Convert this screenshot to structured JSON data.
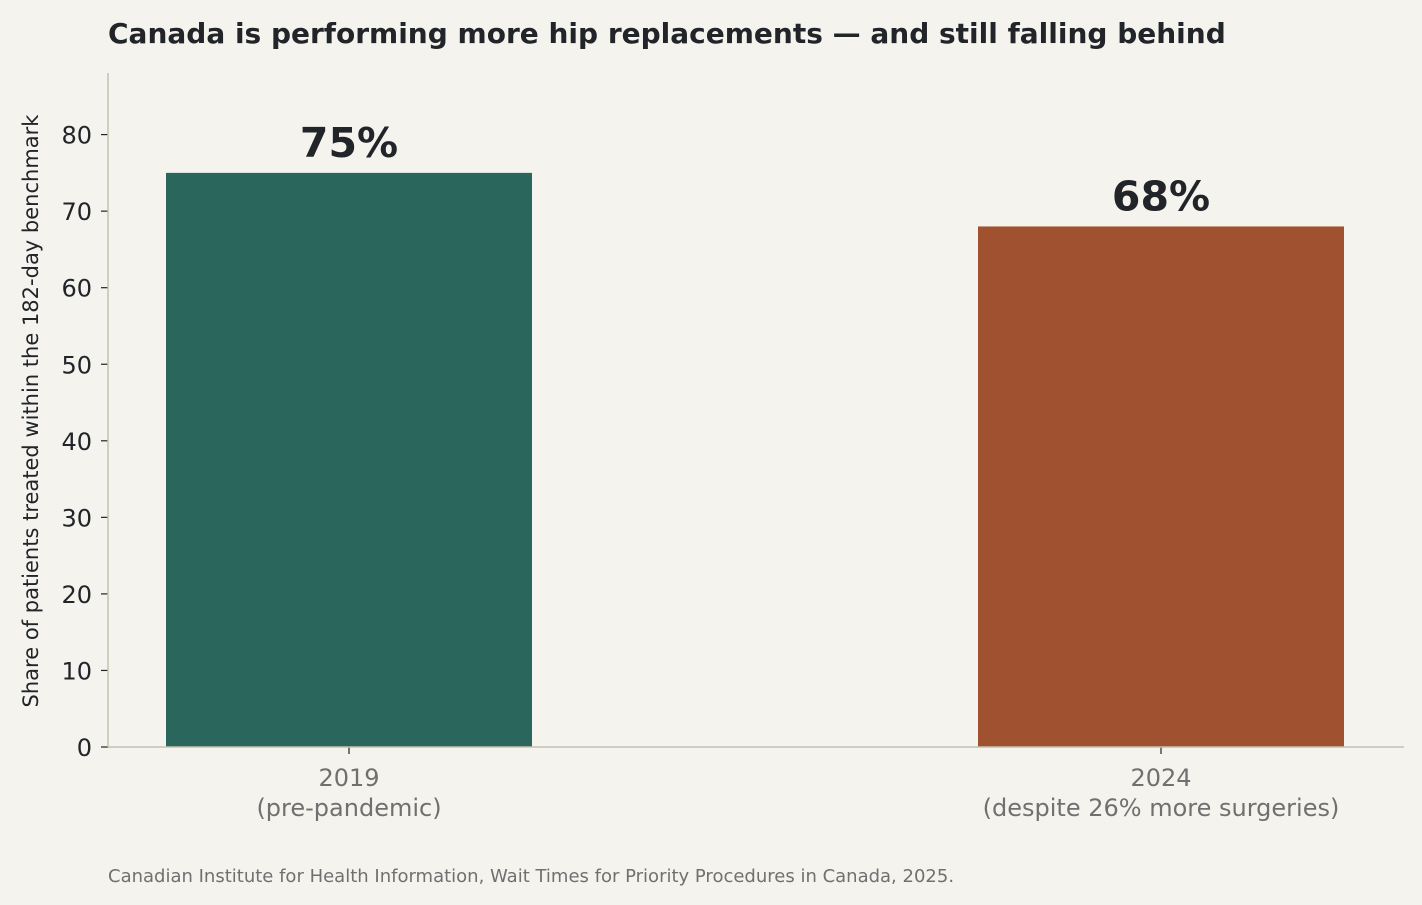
{
  "chart_data": {
    "type": "bar",
    "title": "Canada is performing more hip replacements — and still falling behind",
    "ylabel": "Share of patients treated within the 182-day benchmark",
    "xlabel": "",
    "ylim": [
      0,
      88
    ],
    "yticks": [
      0,
      10,
      20,
      30,
      40,
      50,
      60,
      70,
      80
    ],
    "grid": false,
    "categories": [
      {
        "year": "2019",
        "note": "(pre-pandemic)"
      },
      {
        "year": "2024",
        "note": "(despite 26% more surgeries)"
      }
    ],
    "values": [
      75,
      68
    ],
    "value_labels": [
      "75%",
      "68%"
    ],
    "colors": [
      "#2b665c",
      "#a05230"
    ],
    "source": "Canadian Institute for Health Information, Wait Times for Priority Procedures in Canada, 2025."
  }
}
